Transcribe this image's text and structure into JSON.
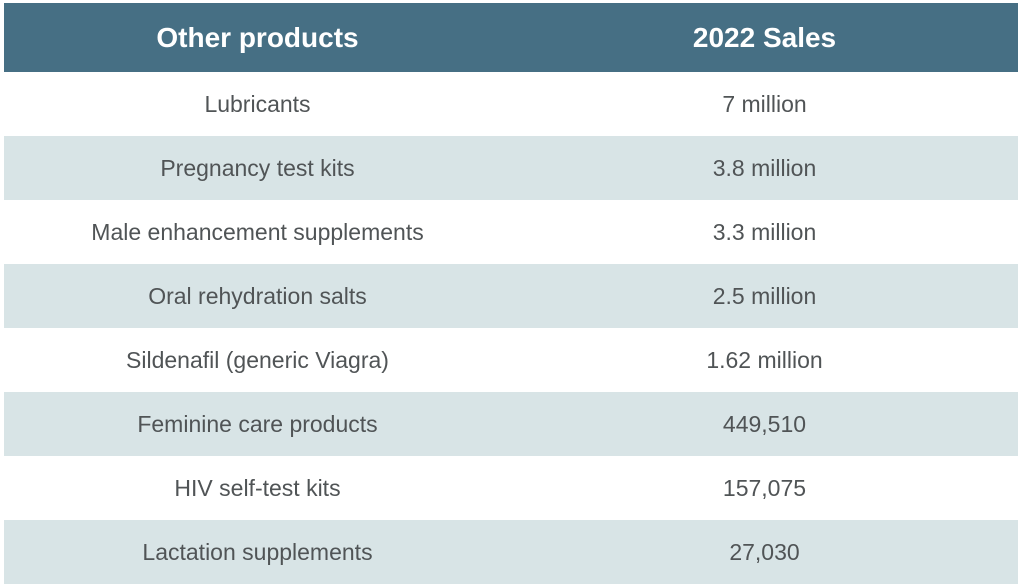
{
  "colors": {
    "header_bg": "#466f84",
    "header_text": "#ffffff",
    "row_alt_bg": "#d8e4e6",
    "row_bg": "#ffffff",
    "body_text": "#505456"
  },
  "table": {
    "headers": [
      "Other products",
      "2022 Sales"
    ],
    "rows": [
      [
        "Lubricants",
        "7 million"
      ],
      [
        "Pregnancy test kits",
        "3.8 million"
      ],
      [
        "Male enhancement supplements",
        "3.3 million"
      ],
      [
        "Oral rehydration salts",
        "2.5 million"
      ],
      [
        "Sildenafil (generic Viagra)",
        "1.62 million"
      ],
      [
        "Feminine care products",
        "449,510"
      ],
      [
        "HIV self-test kits",
        "157,075"
      ],
      [
        "Lactation supplements",
        "27,030"
      ]
    ]
  }
}
